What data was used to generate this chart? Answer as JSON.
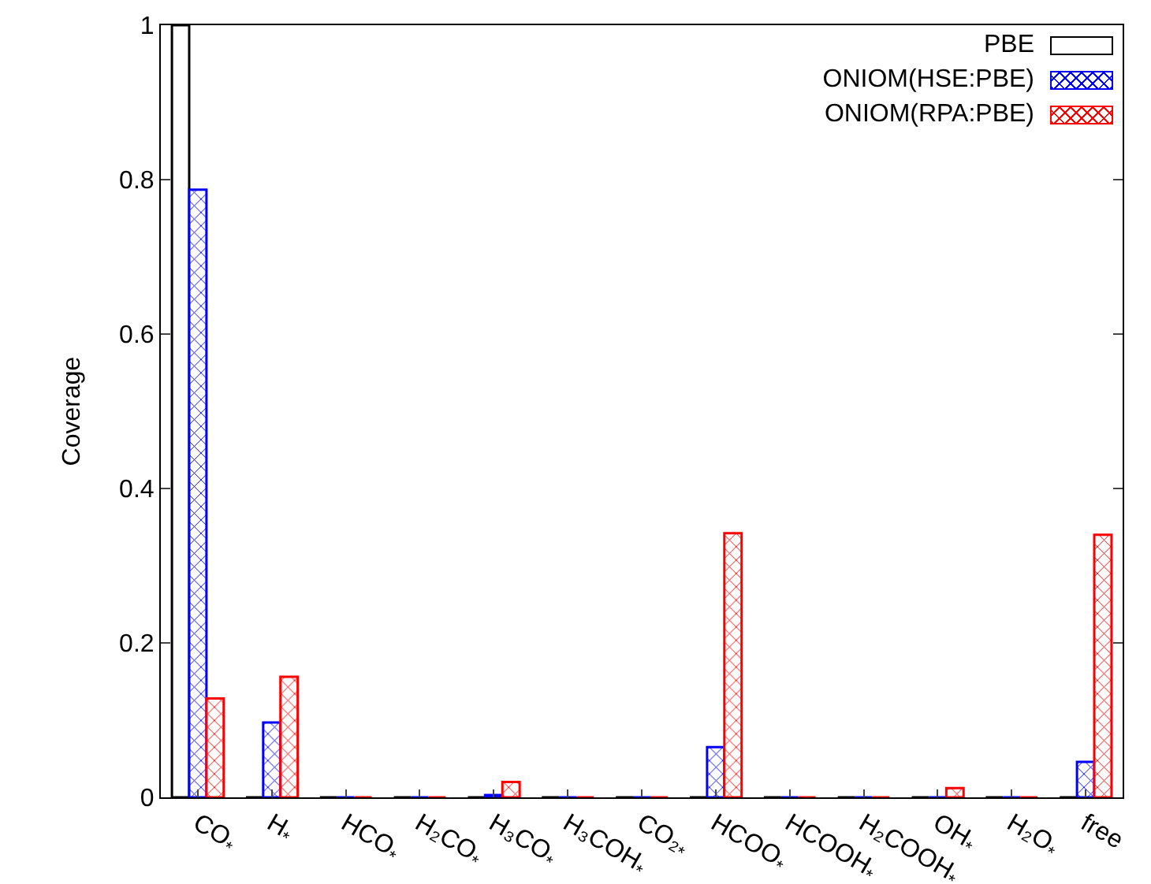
{
  "chart_data": {
    "type": "bar",
    "ylabel": "Coverage",
    "categories": [
      "CO$_{*}$",
      "H$_{*}$",
      "HCO$_{*}$",
      "H₂CO$_{*}$",
      "H₃CO$_{*}$",
      "H₃COH$_{*}$",
      "CO₂$_{*}$",
      "HCOO$_{*}$",
      "HCOOH$_{*}$",
      "H₂COOH$_{*}$",
      "OH$_{*}$",
      "H₂O$_{*}$",
      "free"
    ],
    "series": [
      {
        "name": "PBE",
        "color": "#000000",
        "values": [
          1.0,
          0,
          0,
          0,
          0,
          0,
          0,
          0,
          0,
          0,
          0,
          0,
          0
        ]
      },
      {
        "name": "ONIOM(HSE:PBE)",
        "color": "#0000ff",
        "values": [
          0.787,
          0.097,
          0,
          0,
          0.003,
          0,
          0,
          0.065,
          0,
          0,
          0,
          0,
          0.046
        ]
      },
      {
        "name": "ONIOM(RPA:PBE)",
        "color": "#ff0000",
        "values": [
          0.128,
          0.156,
          0,
          0,
          0.02,
          0,
          0,
          0.342,
          0,
          0,
          0.012,
          0,
          0.34
        ]
      }
    ],
    "ylim": [
      0,
      1
    ],
    "yticks": [
      0,
      0.2,
      0.4,
      0.6,
      0.8,
      1
    ],
    "grid": false,
    "legend": "top right"
  }
}
